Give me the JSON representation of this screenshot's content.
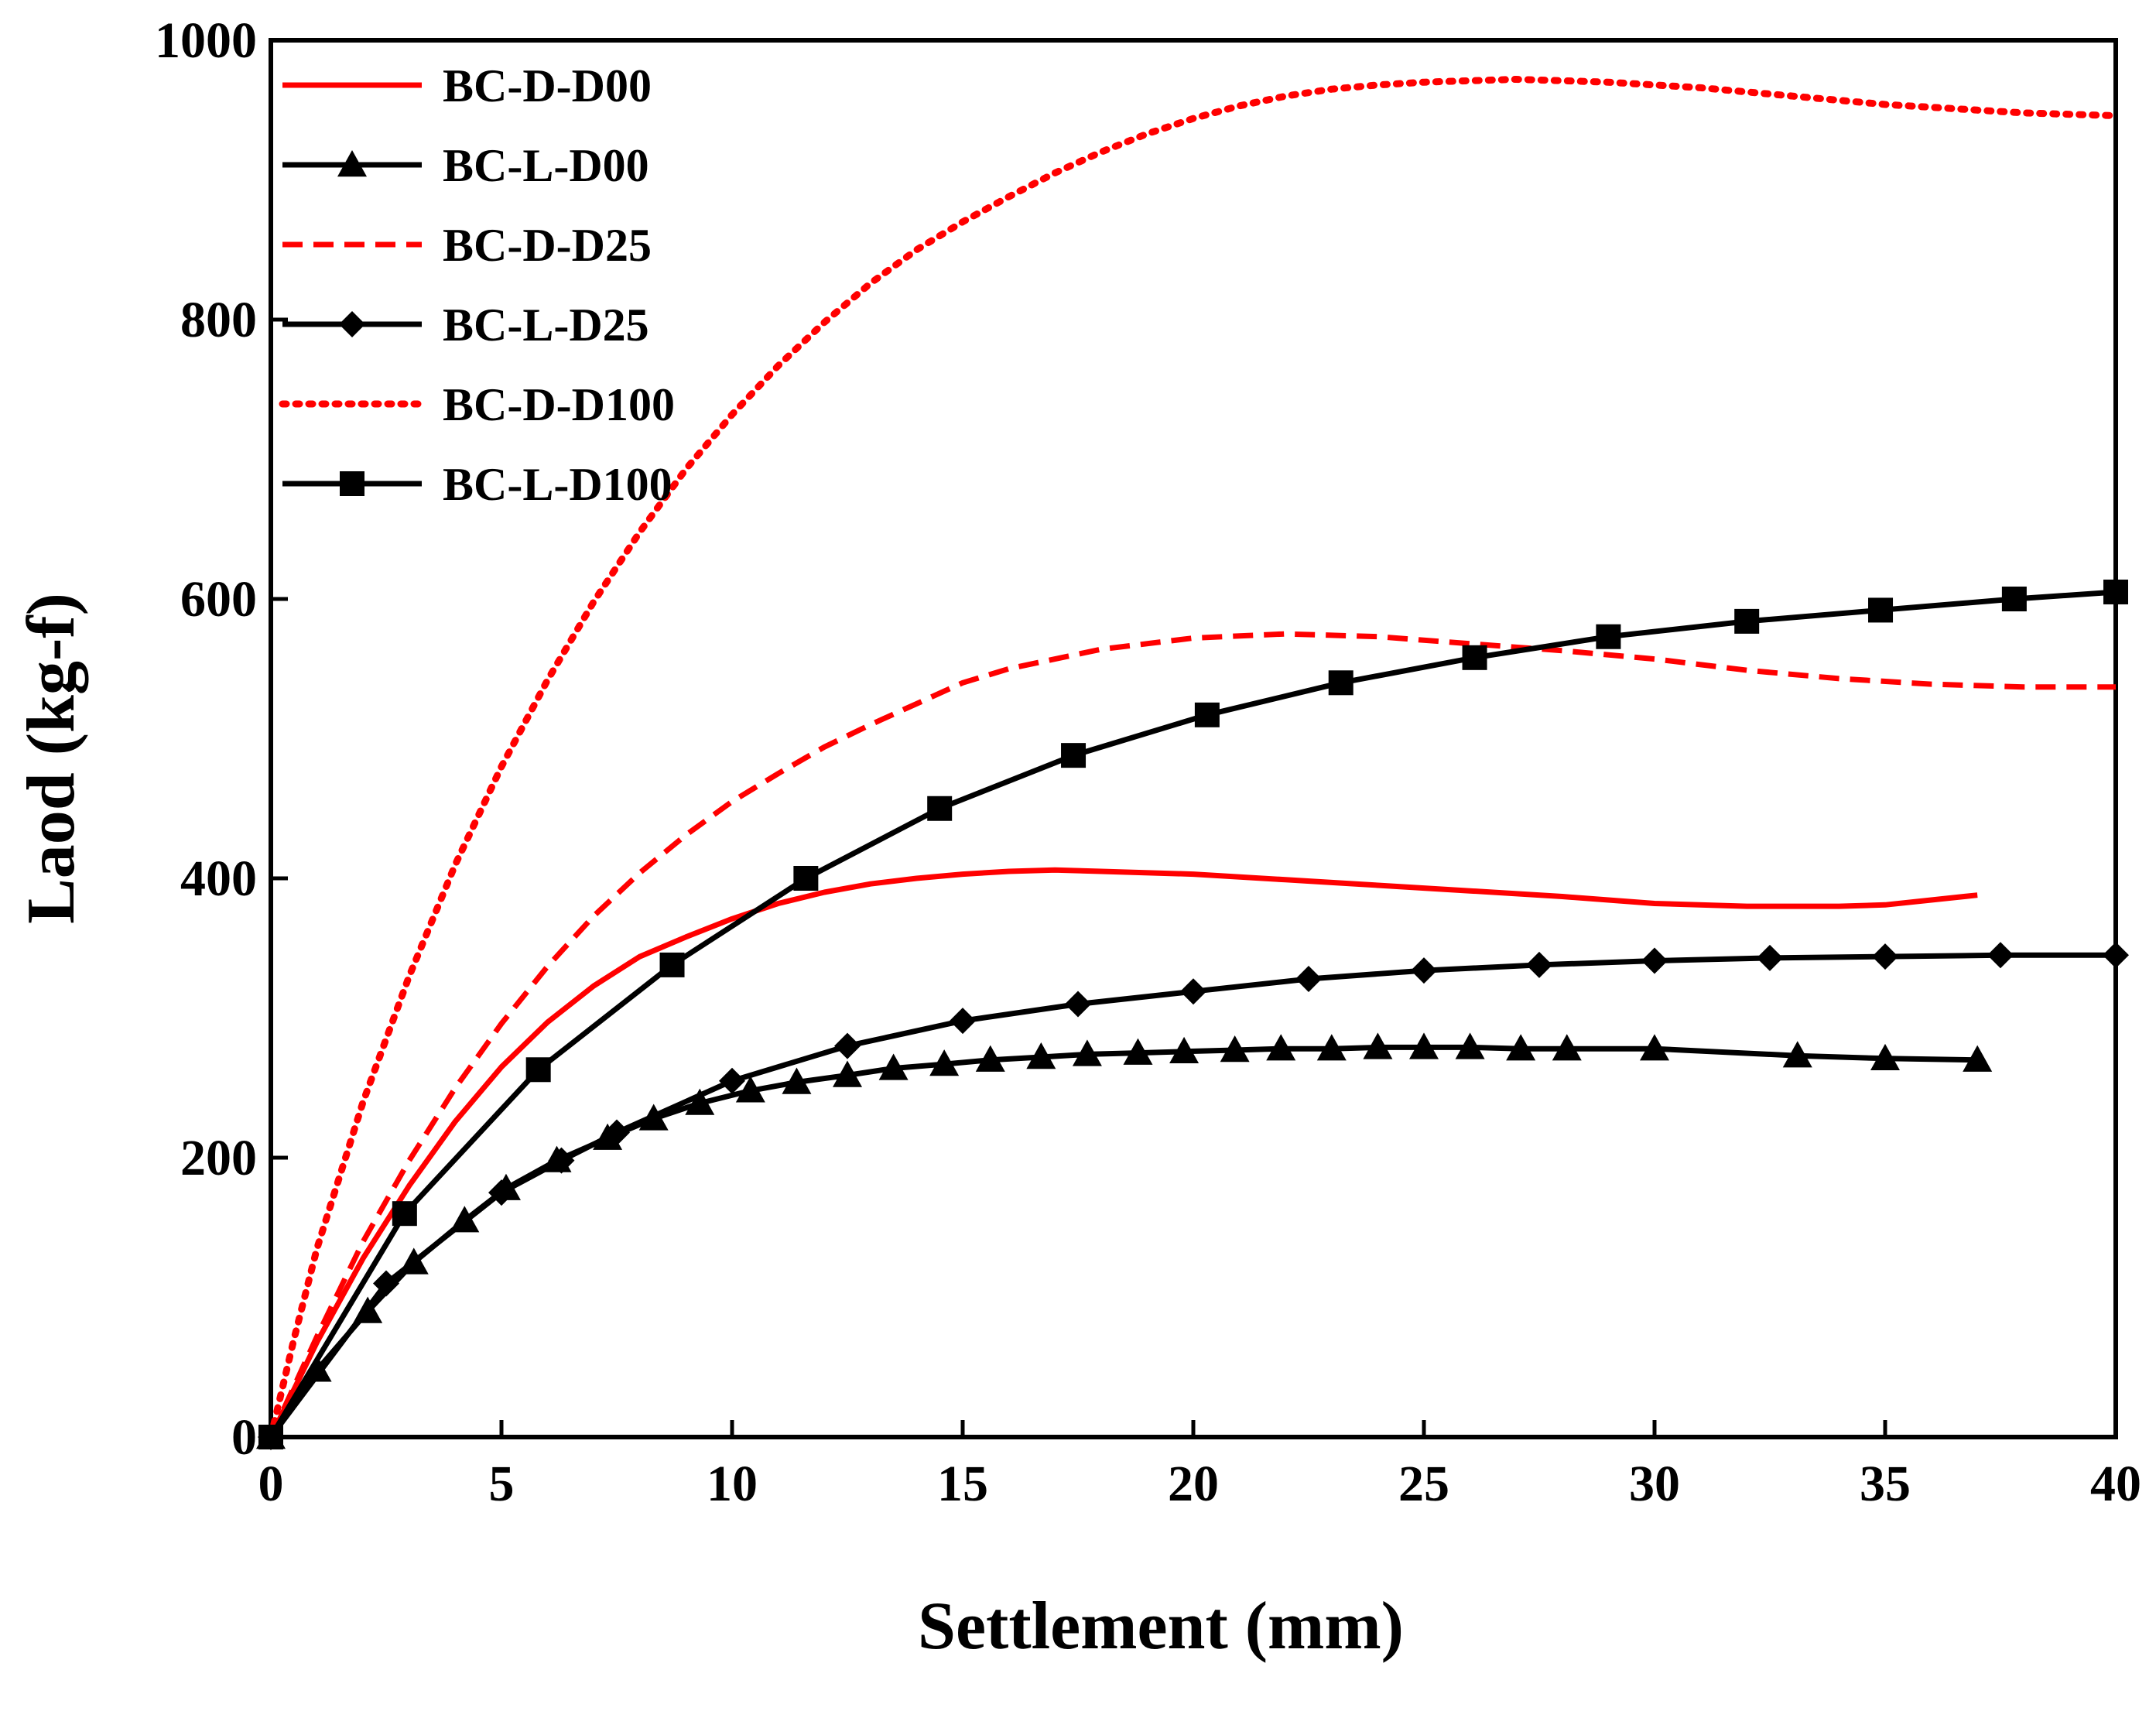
{
  "chart_data": {
    "type": "line",
    "title": "",
    "xlabel": "Settlement (mm)",
    "ylabel": "Laod (kg-f)",
    "xlim": [
      0,
      40
    ],
    "ylim": [
      0,
      1000
    ],
    "xticks": [
      0,
      5,
      10,
      15,
      20,
      25,
      30,
      35,
      40
    ],
    "yticks": [
      0,
      200,
      400,
      600,
      800,
      1000
    ],
    "grid": false,
    "legend_position": "top-left",
    "series": [
      {
        "name": "BC-D-D00",
        "color": "#ff0000",
        "dash": "solid",
        "marker": "none",
        "x": [
          0,
          1,
          2,
          3,
          4,
          5,
          6,
          7,
          8,
          9,
          10,
          11,
          12,
          13,
          14,
          15,
          16,
          17,
          18,
          20,
          22,
          24,
          26,
          28,
          30,
          32,
          34,
          35,
          37
        ],
        "y": [
          0,
          68,
          128,
          180,
          226,
          265,
          297,
          323,
          344,
          358,
          371,
          382,
          390,
          396,
          400,
          403,
          405,
          406,
          405,
          403,
          399,
          395,
          391,
          387,
          382,
          380,
          380,
          381,
          388
        ]
      },
      {
        "name": "BC-L-D00",
        "color": "#000000",
        "dash": "solid",
        "marker": "triangle",
        "x": [
          0,
          1,
          2.1,
          3.1,
          4.2,
          5.1,
          6.2,
          7.3,
          8.3,
          9.3,
          10.4,
          11.4,
          12.5,
          13.5,
          14.6,
          15.6,
          16.7,
          17.7,
          18.8,
          19.8,
          20.9,
          21.9,
          23,
          24,
          25,
          26,
          27.1,
          28.1,
          30,
          33.1,
          35,
          37
        ],
        "y": [
          0,
          48,
          90,
          125,
          155,
          178,
          198,
          214,
          228,
          239,
          248,
          254,
          259,
          264,
          267,
          270,
          272,
          274,
          275,
          276,
          277,
          278,
          278,
          279,
          279,
          279,
          278,
          278,
          278,
          273,
          271,
          270
        ]
      },
      {
        "name": "BC-D-D25",
        "color": "#ff0000",
        "dash": "dashed",
        "marker": "none",
        "x": [
          0,
          1,
          2,
          3,
          4,
          5,
          6,
          7,
          8,
          9,
          10,
          11,
          12,
          13,
          14,
          15,
          16,
          18,
          20,
          22,
          24,
          26,
          28,
          30,
          32,
          34,
          36,
          38,
          40
        ],
        "y": [
          0,
          72,
          140,
          198,
          250,
          296,
          337,
          373,
          404,
          431,
          455,
          475,
          494,
          510,
          525,
          540,
          550,
          564,
          572,
          575,
          573,
          568,
          563,
          557,
          549,
          543,
          539,
          537,
          537
        ]
      },
      {
        "name": "BC-L-D25",
        "color": "#000000",
        "dash": "solid",
        "marker": "diamond",
        "x": [
          0,
          2.5,
          5,
          6.3,
          7.5,
          10,
          12.5,
          15,
          17.5,
          20,
          22.5,
          25,
          27.5,
          30,
          32.5,
          35,
          37.5,
          40
        ],
        "y": [
          0,
          110,
          175,
          198,
          218,
          255,
          280,
          298,
          310,
          319,
          328,
          334,
          338,
          341,
          343,
          344,
          345,
          345
        ]
      },
      {
        "name": "BC-D-D100",
        "color": "#ff0000",
        "dash": "dotted",
        "marker": "none",
        "x": [
          0,
          0.5,
          1,
          2,
          3,
          4,
          5,
          6,
          7,
          8,
          9,
          10,
          11,
          12,
          13,
          14,
          15,
          16,
          17,
          18,
          19,
          20,
          21,
          22,
          23,
          24,
          25,
          26,
          27,
          28,
          29,
          30,
          31,
          32,
          33,
          34,
          35,
          36,
          37,
          38,
          39,
          40
        ],
        "y": [
          0,
          70,
          135,
          240,
          330,
          410,
          480,
          542,
          598,
          648,
          693,
          732,
          767,
          798,
          826,
          850,
          870,
          888,
          905,
          920,
          933,
          944,
          953,
          960,
          965,
          968,
          970,
          971,
          972,
          971,
          970,
          968,
          966,
          963,
          960,
          957,
          954,
          952,
          950,
          948,
          947,
          946
        ]
      },
      {
        "name": "BC-L-D100",
        "color": "#000000",
        "dash": "solid",
        "marker": "square",
        "x": [
          0,
          2.9,
          5.8,
          8.7,
          11.6,
          14.5,
          17.4,
          20.3,
          23.2,
          26.1,
          29,
          32,
          34.9,
          37.8,
          40
        ],
        "y": [
          0,
          160,
          263,
          338,
          400,
          450,
          488,
          517,
          540,
          558,
          573,
          584,
          592,
          600,
          605
        ]
      }
    ]
  }
}
